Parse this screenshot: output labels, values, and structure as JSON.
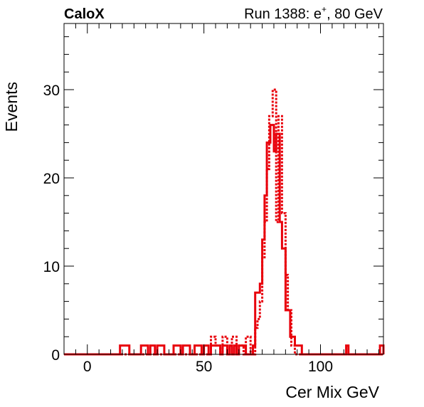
{
  "header": {
    "brand": "CaloX",
    "run_label": "Run 1388: e",
    "run_sup": "+",
    "run_suffix": ", 80 GeV"
  },
  "chart_data": {
    "type": "histogram",
    "xlabel": "Cer Mix GeV",
    "ylabel": "Events",
    "xlim": [
      -10,
      127
    ],
    "ylim": [
      0,
      37.5
    ],
    "x_ticks": [
      0,
      50,
      100
    ],
    "y_ticks": [
      0,
      10,
      20,
      30
    ],
    "grid": false,
    "bin_width": 1.5,
    "bin_start": -10,
    "series": [
      {
        "style": "solid",
        "color": "#e8000b",
        "bins": [
          {
            "x0": 14,
            "x1": 18,
            "y": 1
          },
          {
            "x0": 23,
            "x1": 26,
            "y": 1
          },
          {
            "x0": 27,
            "x1": 29,
            "y": 1
          },
          {
            "x0": 30,
            "x1": 33,
            "y": 1
          },
          {
            "x0": 37,
            "x1": 40,
            "y": 1
          },
          {
            "x0": 41,
            "x1": 44,
            "y": 1
          },
          {
            "x0": 46,
            "x1": 49,
            "y": 1
          },
          {
            "x0": 50,
            "x1": 52,
            "y": 1
          },
          {
            "x0": 53,
            "x1": 57,
            "y": 1
          },
          {
            "x0": 58,
            "x1": 60,
            "y": 1
          },
          {
            "x0": 61,
            "x1": 62,
            "y": 1
          },
          {
            "x0": 63,
            "x1": 64,
            "y": 1
          },
          {
            "x0": 65,
            "x1": 68,
            "y": 1
          },
          {
            "x0": 71,
            "x1": 72,
            "y": 1
          },
          {
            "x0": 72,
            "x1": 74,
            "y": 7
          },
          {
            "x0": 74,
            "x1": 75,
            "y": 8
          },
          {
            "x0": 75,
            "x1": 76,
            "y": 13
          },
          {
            "x0": 76,
            "x1": 77,
            "y": 18
          },
          {
            "x0": 77,
            "x1": 78.5,
            "y": 24
          },
          {
            "x0": 78.5,
            "x1": 80,
            "y": 26
          },
          {
            "x0": 80,
            "x1": 81,
            "y": 23
          },
          {
            "x0": 81,
            "x1": 82.5,
            "y": 25
          },
          {
            "x0": 82.5,
            "x1": 83.5,
            "y": 15
          },
          {
            "x0": 83.5,
            "x1": 85,
            "y": 12
          },
          {
            "x0": 85,
            "x1": 87,
            "y": 5
          },
          {
            "x0": 87,
            "x1": 89,
            "y": 2
          },
          {
            "x0": 89,
            "x1": 92,
            "y": 1
          },
          {
            "x0": 111,
            "x1": 112,
            "y": 1
          },
          {
            "x0": 125.5,
            "x1": 127,
            "y": 1
          }
        ]
      },
      {
        "style": "dotted",
        "color": "#e8000b",
        "bins": [
          {
            "x0": 53,
            "x1": 55,
            "y": 2
          },
          {
            "x0": 55,
            "x1": 57,
            "y": 1
          },
          {
            "x0": 58,
            "x1": 60,
            "y": 2
          },
          {
            "x0": 62,
            "x1": 64,
            "y": 2
          },
          {
            "x0": 65,
            "x1": 67,
            "y": 1
          },
          {
            "x0": 68,
            "x1": 70,
            "y": 2
          },
          {
            "x0": 72,
            "x1": 73,
            "y": 3
          },
          {
            "x0": 73,
            "x1": 74,
            "y": 4
          },
          {
            "x0": 74,
            "x1": 75,
            "y": 6
          },
          {
            "x0": 75,
            "x1": 76,
            "y": 11
          },
          {
            "x0": 76,
            "x1": 77,
            "y": 15
          },
          {
            "x0": 77,
            "x1": 78,
            "y": 21
          },
          {
            "x0": 78,
            "x1": 79.5,
            "y": 27
          },
          {
            "x0": 79.5,
            "x1": 81,
            "y": 30
          },
          {
            "x0": 81,
            "x1": 82,
            "y": 15
          },
          {
            "x0": 82,
            "x1": 83.5,
            "y": 27
          },
          {
            "x0": 83.5,
            "x1": 85,
            "y": 16
          },
          {
            "x0": 85,
            "x1": 86,
            "y": 9
          },
          {
            "x0": 86,
            "x1": 87.5,
            "y": 5
          },
          {
            "x0": 87.5,
            "x1": 89,
            "y": 1
          }
        ]
      }
    ]
  }
}
